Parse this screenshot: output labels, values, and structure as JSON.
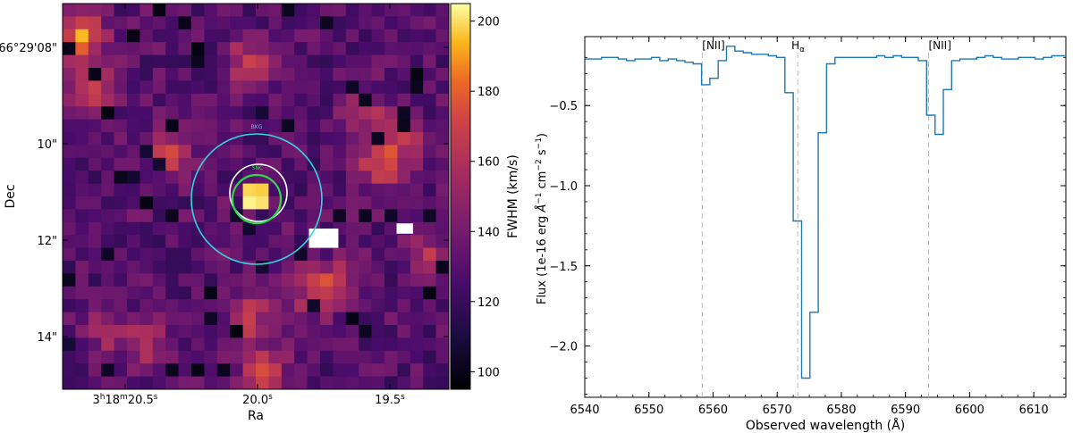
{
  "chart_data": [
    {
      "type": "heatmap",
      "xlabel": "Ra",
      "ylabel": "Dec",
      "x_ticks": [
        {
          "h": "3",
          "m": "18",
          "s": "20.5"
        },
        {
          "h": "",
          "m": "",
          "s": "20.0"
        },
        {
          "h": "",
          "m": "",
          "s": "19.5"
        }
      ],
      "y_ticks": [
        "-66°29'08\"",
        "10\"",
        "12\"",
        "14\""
      ],
      "colorbar": {
        "label": "FWHM (km/s)",
        "ticks": [
          100,
          120,
          140,
          160,
          180,
          200
        ],
        "range": [
          95,
          205
        ],
        "colormap": "inferno"
      },
      "grid": false,
      "apertures": [
        {
          "label": "BKG",
          "color": "#33d6e0"
        },
        {
          "label": "SNC",
          "color": "#2bd94a"
        },
        {
          "label": "",
          "color": "#ffffff"
        }
      ]
    },
    {
      "type": "line",
      "drawstyle": "steps",
      "xlabel": "Observed wavelength (Å)",
      "ylabel": "Flux (1e-16 erg Å⁻¹ cm⁻² s⁻¹)",
      "xlim": [
        6540,
        6615
      ],
      "ylim": [
        -2.32,
        -0.07
      ],
      "x_ticks": [
        6540,
        6550,
        6560,
        6570,
        6580,
        6590,
        6600,
        6610
      ],
      "y_ticks": [
        -0.5,
        -1.0,
        -1.5,
        -2.0
      ],
      "grid": false,
      "line_color": "#1f77b4",
      "line_markers": [
        {
          "label": "[NII]",
          "x": 6558.3
        },
        {
          "label": "Hα",
          "x": 6573.2
        },
        {
          "label": "[NII]",
          "x": 6593.6
        }
      ],
      "series": [
        {
          "x": [
            6540,
            6541.3,
            6542.6,
            6543.9,
            6545.2,
            6546.5,
            6547.8,
            6549.1,
            6550.4,
            6551.7,
            6553.0,
            6554.3,
            6555.6,
            6556.9,
            6558.2,
            6559.5,
            6560.8,
            6562.1,
            6563.4,
            6564.7,
            6566.0,
            6567.3,
            6568.6,
            6569.9,
            6571.2,
            6572.5,
            6573.8,
            6575.1,
            6576.4,
            6577.7,
            6579.0,
            6580.3,
            6581.6,
            6582.9,
            6584.2,
            6585.5,
            6586.8,
            6588.1,
            6589.4,
            6590.7,
            6592.0,
            6593.3,
            6594.6,
            6595.9,
            6597.2,
            6598.5,
            6599.8,
            6601.1,
            6602.4,
            6603.7,
            6605.0,
            6606.3,
            6607.6,
            6608.9,
            6610.2,
            6611.5,
            6612.8,
            6614.1
          ],
          "y": [
            -0.21,
            -0.21,
            -0.2,
            -0.2,
            -0.21,
            -0.22,
            -0.21,
            -0.21,
            -0.2,
            -0.22,
            -0.21,
            -0.22,
            -0.23,
            -0.24,
            -0.37,
            -0.33,
            -0.22,
            -0.13,
            -0.16,
            -0.17,
            -0.18,
            -0.18,
            -0.19,
            -0.2,
            -0.42,
            -1.22,
            -2.2,
            -1.79,
            -0.67,
            -0.24,
            -0.2,
            -0.2,
            -0.2,
            -0.2,
            -0.2,
            -0.19,
            -0.2,
            -0.19,
            -0.2,
            -0.2,
            -0.22,
            -0.56,
            -0.68,
            -0.4,
            -0.22,
            -0.21,
            -0.21,
            -0.2,
            -0.19,
            -0.2,
            -0.21,
            -0.21,
            -0.2,
            -0.2,
            -0.21,
            -0.2,
            -0.19,
            -0.19
          ]
        }
      ]
    }
  ]
}
